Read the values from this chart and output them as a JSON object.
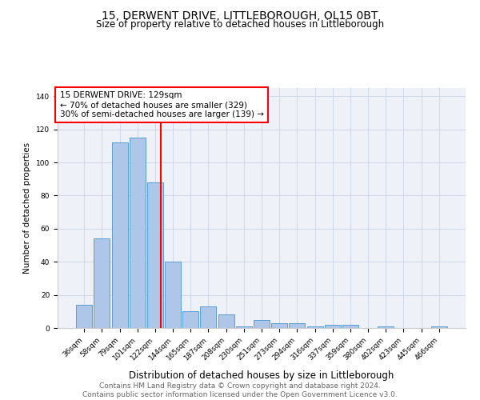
{
  "title": "15, DERWENT DRIVE, LITTLEBOROUGH, OL15 0BT",
  "subtitle": "Size of property relative to detached houses in Littleborough",
  "xlabel": "Distribution of detached houses by size in Littleborough",
  "ylabel": "Number of detached properties",
  "categories": [
    "36sqm",
    "58sqm",
    "79sqm",
    "101sqm",
    "122sqm",
    "144sqm",
    "165sqm",
    "187sqm",
    "208sqm",
    "230sqm",
    "251sqm",
    "273sqm",
    "294sqm",
    "316sqm",
    "337sqm",
    "359sqm",
    "380sqm",
    "402sqm",
    "423sqm",
    "445sqm",
    "466sqm"
  ],
  "values": [
    14,
    54,
    112,
    115,
    88,
    40,
    10,
    13,
    8,
    1,
    5,
    3,
    3,
    1,
    2,
    2,
    0,
    1,
    0,
    0,
    1
  ],
  "bar_color": "#aec6e8",
  "bar_edge_color": "#5a9fd4",
  "annotation_title": "15 DERWENT DRIVE: 129sqm",
  "annotation_line1": "← 70% of detached houses are smaller (329)",
  "annotation_line2": "30% of semi-detached houses are larger (139) →",
  "annotation_box_color": "white",
  "annotation_box_edge_color": "red",
  "vline_color": "red",
  "footer_line1": "Contains HM Land Registry data © Crown copyright and database right 2024.",
  "footer_line2": "Contains public sector information licensed under the Open Government Licence v3.0.",
  "ylim": [
    0,
    145
  ],
  "yticks": [
    0,
    20,
    40,
    60,
    80,
    100,
    120,
    140
  ],
  "grid_color": "#d0d8e8",
  "bg_color": "#eef2f8",
  "title_fontsize": 10,
  "subtitle_fontsize": 8.5,
  "xlabel_fontsize": 8.5,
  "ylabel_fontsize": 7.5,
  "tick_fontsize": 6.5,
  "annotation_fontsize": 7.5,
  "footer_fontsize": 6.5
}
